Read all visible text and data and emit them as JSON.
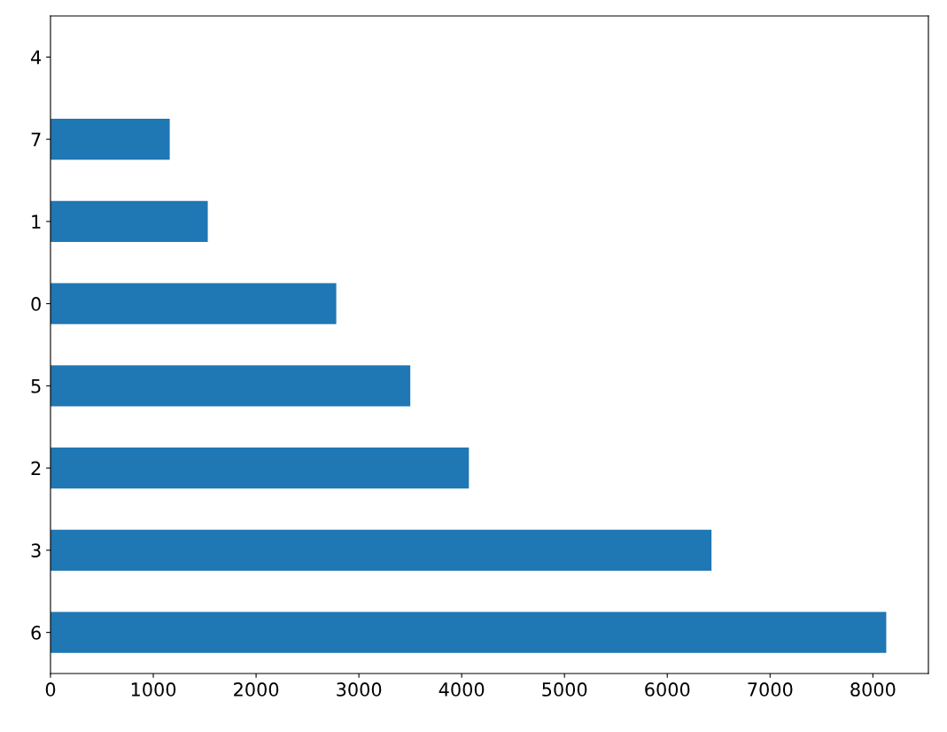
{
  "chart_data": {
    "type": "bar",
    "orientation": "horizontal",
    "categories": [
      "4",
      "7",
      "1",
      "0",
      "5",
      "2",
      "3",
      "6"
    ],
    "values": [
      0,
      1160,
      1530,
      2780,
      3500,
      4070,
      6430,
      8130
    ],
    "color": "#1f77b4",
    "xlim": [
      0,
      8540
    ],
    "xticks": [
      0,
      1000,
      2000,
      3000,
      4000,
      5000,
      6000,
      7000,
      8000
    ],
    "grid": false,
    "legend": false
  }
}
